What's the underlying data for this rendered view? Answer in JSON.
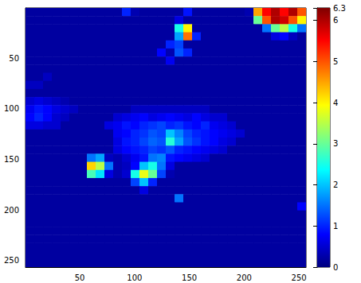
{
  "chart_data": {
    "type": "heatmap",
    "x": [
      4.5,
      12.5,
      20.5,
      28.5,
      36.5,
      44.5,
      52.5,
      60.5,
      68.5,
      76.5,
      84.5,
      92.5,
      100.5,
      108.5,
      116.5,
      124.5,
      132.5,
      140.5,
      148.5,
      156.5,
      164.5,
      172.5,
      180.5,
      188.5,
      196.5,
      204.5,
      212.5,
      220.5,
      228.5,
      236.5,
      244.5,
      252.5
    ],
    "y": [
      4.5,
      12.5,
      20.5,
      28.5,
      36.5,
      44.5,
      52.5,
      60.5,
      68.5,
      76.5,
      84.5,
      92.5,
      100.5,
      108.5,
      116.5,
      124.5,
      132.5,
      140.5,
      148.5,
      156.5,
      164.5,
      172.5,
      180.5,
      188.5,
      196.5,
      204.5,
      212.5,
      220.5,
      228.5,
      236.5,
      244.5,
      252.5
    ],
    "cells": [
      [
        0.2,
        0.2,
        0.2,
        0.2,
        0.2,
        0.2,
        0.2,
        0.2,
        0.2,
        0.2,
        0.2,
        1.0,
        0.3,
        0.2,
        0.2,
        0.2,
        0.2,
        0.2,
        0.9,
        0.2,
        0.2,
        0.2,
        0.2,
        0.2,
        0.2,
        0.3,
        4.5,
        5.5,
        6.0,
        5.5,
        6.0,
        5.0
      ],
      [
        0.2,
        0.2,
        0.2,
        0.2,
        0.2,
        0.2,
        0.2,
        0.2,
        0.2,
        0.2,
        0.2,
        0.2,
        0.2,
        0.2,
        0.2,
        0.2,
        0.2,
        0.6,
        0.2,
        0.2,
        0.2,
        0.2,
        0.2,
        0.2,
        0.2,
        0.2,
        3.0,
        5.0,
        6.0,
        5.8,
        5.0,
        4.0
      ],
      [
        0.2,
        0.2,
        0.2,
        0.2,
        0.2,
        0.2,
        0.2,
        0.2,
        0.2,
        0.2,
        0.2,
        0.2,
        0.2,
        0.2,
        0.2,
        0.2,
        0.2,
        2.5,
        4.0,
        0.2,
        0.2,
        0.2,
        0.2,
        0.2,
        0.2,
        0.2,
        0.2,
        1.5,
        3.0,
        3.5,
        2.5,
        1.5
      ],
      [
        0.2,
        0.2,
        0.2,
        0.2,
        0.2,
        0.2,
        0.2,
        0.2,
        0.2,
        0.2,
        0.2,
        0.2,
        0.2,
        0.2,
        0.2,
        0.2,
        0.2,
        1.8,
        4.8,
        1.0,
        0.2,
        0.2,
        0.2,
        0.2,
        0.2,
        0.2,
        0.2,
        0.2,
        0.6,
        0.8,
        0.4,
        0.2
      ],
      [
        0.2,
        0.2,
        0.2,
        0.2,
        0.2,
        0.2,
        0.2,
        0.2,
        0.2,
        0.2,
        0.2,
        0.2,
        0.2,
        0.2,
        0.2,
        0.2,
        1.0,
        1.2,
        0.2,
        0.2,
        0.2,
        0.2,
        0.2,
        0.2,
        0.2,
        0.2,
        0.2,
        0.2,
        0.2,
        0.2,
        0.2,
        0.2
      ],
      [
        0.2,
        0.2,
        0.2,
        0.2,
        0.2,
        0.2,
        0.2,
        0.2,
        0.2,
        0.2,
        0.2,
        0.2,
        0.2,
        0.2,
        0.2,
        0.8,
        0.3,
        1.3,
        1.0,
        0.2,
        0.2,
        0.2,
        0.2,
        0.2,
        0.2,
        0.2,
        0.2,
        0.2,
        0.2,
        0.2,
        0.2,
        0.2
      ],
      [
        0.2,
        0.2,
        0.2,
        0.2,
        0.2,
        0.2,
        0.2,
        0.2,
        0.2,
        0.2,
        0.2,
        0.2,
        0.2,
        0.2,
        0.2,
        0.2,
        0.7,
        0.2,
        0.2,
        0.2,
        0.2,
        0.2,
        0.2,
        0.2,
        0.2,
        0.2,
        0.2,
        0.2,
        0.2,
        0.2,
        0.2,
        0.2
      ],
      [
        0.2,
        0.2,
        0.2,
        0.2,
        0.2,
        0.2,
        0.2,
        0.2,
        0.2,
        0.2,
        0.2,
        0.2,
        0.2,
        0.2,
        0.2,
        0.2,
        0.2,
        0.2,
        0.2,
        0.2,
        0.2,
        0.2,
        0.2,
        0.2,
        0.2,
        0.2,
        0.2,
        0.2,
        0.2,
        0.2,
        0.2,
        0.2
      ],
      [
        0.2,
        0.2,
        0.4,
        0.2,
        0.2,
        0.2,
        0.2,
        0.2,
        0.2,
        0.2,
        0.2,
        0.2,
        0.2,
        0.2,
        0.2,
        0.2,
        0.2,
        0.2,
        0.2,
        0.2,
        0.2,
        0.2,
        0.2,
        0.2,
        0.2,
        0.2,
        0.2,
        0.2,
        0.2,
        0.2,
        0.2,
        0.2
      ],
      [
        0.4,
        0.4,
        0.2,
        0.2,
        0.2,
        0.2,
        0.2,
        0.2,
        0.2,
        0.2,
        0.2,
        0.2,
        0.2,
        0.2,
        0.2,
        0.2,
        0.2,
        0.2,
        0.2,
        0.2,
        0.2,
        0.2,
        0.2,
        0.2,
        0.2,
        0.2,
        0.2,
        0.2,
        0.2,
        0.2,
        0.2,
        0.2
      ],
      [
        0.2,
        0.2,
        0.2,
        0.2,
        0.2,
        0.2,
        0.2,
        0.2,
        0.2,
        0.2,
        0.2,
        0.2,
        0.2,
        0.2,
        0.2,
        0.2,
        0.2,
        0.2,
        0.2,
        0.2,
        0.2,
        0.2,
        0.2,
        0.2,
        0.2,
        0.2,
        0.2,
        0.2,
        0.2,
        0.2,
        0.2,
        0.2
      ],
      [
        0.5,
        0.6,
        0.5,
        0.4,
        0.3,
        0.2,
        0.2,
        0.2,
        0.2,
        0.2,
        0.2,
        0.2,
        0.2,
        0.2,
        0.2,
        0.2,
        0.2,
        0.2,
        0.2,
        0.2,
        0.2,
        0.2,
        0.2,
        0.2,
        0.2,
        0.2,
        0.2,
        0.2,
        0.2,
        0.2,
        0.2,
        0.2
      ],
      [
        0.7,
        0.9,
        0.8,
        0.6,
        0.5,
        0.4,
        0.2,
        0.2,
        0.2,
        0.2,
        0.2,
        0.2,
        0.4,
        0.4,
        0.4,
        0.4,
        0.4,
        0.4,
        0.4,
        0.4,
        0.4,
        0.2,
        0.2,
        0.2,
        0.2,
        0.2,
        0.2,
        0.2,
        0.2,
        0.2,
        0.2,
        0.2
      ],
      [
        0.8,
        1.0,
        0.8,
        0.5,
        0.4,
        0.2,
        0.2,
        0.2,
        0.2,
        0.2,
        0.5,
        0.6,
        0.7,
        0.8,
        0.6,
        0.7,
        0.8,
        0.7,
        0.6,
        0.8,
        0.6,
        0.5,
        0.5,
        0.2,
        0.2,
        0.2,
        0.2,
        0.2,
        0.2,
        0.2,
        0.2,
        0.2
      ],
      [
        0.6,
        0.6,
        0.5,
        0.5,
        0.2,
        0.2,
        0.2,
        0.2,
        0.2,
        0.6,
        0.7,
        0.9,
        0.8,
        1.0,
        1.1,
        1.2,
        1.0,
        1.1,
        0.9,
        0.8,
        1.0,
        0.7,
        0.6,
        0.5,
        0.2,
        0.2,
        0.2,
        0.2,
        0.2,
        0.2,
        0.2,
        0.2
      ],
      [
        0.2,
        0.2,
        0.2,
        0.2,
        0.2,
        0.2,
        0.2,
        0.2,
        0.2,
        0.2,
        0.7,
        0.8,
        1.0,
        1.1,
        1.3,
        1.2,
        2.0,
        1.6,
        1.2,
        1.0,
        0.9,
        0.8,
        0.7,
        0.6,
        0.5,
        0.2,
        0.2,
        0.2,
        0.2,
        0.2,
        0.2,
        0.2
      ],
      [
        0.2,
        0.2,
        0.2,
        0.2,
        0.2,
        0.2,
        0.2,
        0.2,
        0.2,
        0.2,
        0.6,
        0.9,
        1.0,
        1.2,
        1.4,
        1.3,
        2.6,
        1.8,
        1.3,
        1.1,
        0.9,
        0.8,
        0.6,
        0.5,
        0.2,
        0.2,
        0.2,
        0.2,
        0.2,
        0.2,
        0.2,
        0.2
      ],
      [
        0.2,
        0.2,
        0.2,
        0.2,
        0.2,
        0.2,
        0.2,
        0.2,
        0.2,
        0.2,
        0.6,
        0.8,
        0.9,
        1.0,
        1.2,
        1.1,
        1.3,
        1.0,
        0.9,
        0.8,
        0.7,
        0.6,
        0.5,
        0.2,
        0.2,
        0.2,
        0.2,
        0.2,
        0.2,
        0.2,
        0.2,
        0.2
      ],
      [
        0.2,
        0.2,
        0.2,
        0.2,
        0.2,
        0.2,
        0.2,
        1.5,
        1.8,
        0.4,
        0.3,
        0.5,
        0.7,
        0.9,
        1.5,
        1.6,
        0.9,
        0.8,
        0.7,
        0.6,
        0.5,
        0.2,
        0.2,
        0.2,
        0.2,
        0.2,
        0.2,
        0.2,
        0.2,
        0.2,
        0.2,
        0.2
      ],
      [
        0.2,
        0.2,
        0.2,
        0.2,
        0.2,
        0.2,
        0.2,
        4.2,
        3.5,
        1.5,
        0.3,
        0.4,
        0.8,
        2.0,
        2.5,
        1.5,
        0.6,
        0.2,
        0.2,
        0.2,
        0.2,
        0.2,
        0.2,
        0.2,
        0.2,
        0.2,
        0.2,
        0.2,
        0.2,
        0.2,
        0.2,
        0.2
      ],
      [
        0.2,
        0.2,
        0.2,
        0.2,
        0.2,
        0.2,
        0.2,
        2.8,
        2.2,
        0.6,
        0.3,
        0.5,
        2.5,
        3.8,
        3.0,
        1.2,
        0.3,
        0.2,
        0.2,
        0.2,
        0.2,
        0.2,
        0.2,
        0.2,
        0.2,
        0.2,
        0.2,
        0.2,
        0.2,
        0.2,
        0.2,
        0.2
      ],
      [
        0.2,
        0.2,
        0.2,
        0.2,
        0.2,
        0.2,
        0.2,
        0.2,
        0.2,
        0.2,
        0.2,
        0.2,
        1.2,
        2.0,
        1.0,
        0.2,
        0.2,
        0.2,
        0.2,
        0.2,
        0.2,
        0.2,
        0.2,
        0.2,
        0.2,
        0.2,
        0.2,
        0.2,
        0.2,
        0.2,
        0.2,
        0.2
      ],
      [
        0.2,
        0.2,
        0.2,
        0.2,
        0.2,
        0.2,
        0.2,
        0.2,
        0.2,
        0.2,
        0.2,
        0.2,
        0.2,
        0.6,
        0.2,
        0.2,
        0.2,
        0.2,
        0.2,
        0.2,
        0.2,
        0.2,
        0.2,
        0.2,
        0.2,
        0.2,
        0.2,
        0.2,
        0.2,
        0.2,
        0.2,
        0.2
      ],
      [
        0.2,
        0.2,
        0.2,
        0.2,
        0.2,
        0.2,
        0.2,
        0.2,
        0.2,
        0.2,
        0.2,
        0.2,
        0.2,
        0.2,
        0.2,
        0.2,
        0.2,
        1.5,
        0.2,
        0.2,
        0.2,
        0.2,
        0.2,
        0.2,
        0.2,
        0.2,
        0.2,
        0.2,
        0.2,
        0.2,
        0.2,
        0.2
      ],
      [
        0.2,
        0.2,
        0.2,
        0.2,
        0.2,
        0.2,
        0.2,
        0.2,
        0.2,
        0.2,
        0.2,
        0.2,
        0.2,
        0.2,
        0.2,
        0.2,
        0.2,
        0.2,
        0.2,
        0.2,
        0.2,
        0.2,
        0.2,
        0.2,
        0.2,
        0.2,
        0.2,
        0.2,
        0.2,
        0.2,
        0.2,
        0.8
      ],
      [
        0.2,
        0.2,
        0.2,
        0.2,
        0.2,
        0.2,
        0.2,
        0.2,
        0.2,
        0.2,
        0.2,
        0.2,
        0.2,
        0.2,
        0.2,
        0.2,
        0.2,
        0.2,
        0.2,
        0.2,
        0.2,
        0.2,
        0.2,
        0.2,
        0.2,
        0.2,
        0.2,
        0.2,
        0.2,
        0.2,
        0.2,
        0.2
      ],
      [
        0.2,
        0.2,
        0.2,
        0.2,
        0.2,
        0.2,
        0.2,
        0.2,
        0.2,
        0.2,
        0.2,
        0.2,
        0.2,
        0.2,
        0.2,
        0.2,
        0.2,
        0.2,
        0.2,
        0.2,
        0.2,
        0.2,
        0.2,
        0.2,
        0.2,
        0.2,
        0.2,
        0.2,
        0.2,
        0.2,
        0.2,
        0.2
      ],
      [
        0.2,
        0.2,
        0.2,
        0.2,
        0.2,
        0.2,
        0.2,
        0.2,
        0.2,
        0.2,
        0.2,
        0.2,
        0.2,
        0.2,
        0.2,
        0.2,
        0.2,
        0.2,
        0.2,
        0.2,
        0.2,
        0.2,
        0.2,
        0.2,
        0.2,
        0.2,
        0.2,
        0.2,
        0.2,
        0.2,
        0.2,
        0.2
      ],
      [
        0.2,
        0.2,
        0.2,
        0.2,
        0.2,
        0.2,
        0.2,
        0.2,
        0.2,
        0.2,
        0.2,
        0.2,
        0.2,
        0.2,
        0.2,
        0.2,
        0.2,
        0.2,
        0.2,
        0.2,
        0.2,
        0.2,
        0.2,
        0.2,
        0.2,
        0.2,
        0.2,
        0.2,
        0.2,
        0.2,
        0.2,
        0.2
      ],
      [
        0.2,
        0.2,
        0.2,
        0.2,
        0.2,
        0.2,
        0.2,
        0.2,
        0.2,
        0.2,
        0.2,
        0.2,
        0.2,
        0.2,
        0.2,
        0.2,
        0.2,
        0.2,
        0.2,
        0.2,
        0.2,
        0.2,
        0.2,
        0.2,
        0.2,
        0.2,
        0.2,
        0.2,
        0.2,
        0.2,
        0.2,
        0.2
      ],
      [
        0.2,
        0.2,
        0.2,
        0.2,
        0.2,
        0.2,
        0.2,
        0.2,
        0.2,
        0.2,
        0.2,
        0.2,
        0.2,
        0.2,
        0.2,
        0.2,
        0.2,
        0.2,
        0.2,
        0.2,
        0.2,
        0.2,
        0.2,
        0.2,
        0.2,
        0.2,
        0.2,
        0.2,
        0.2,
        0.2,
        0.2,
        0.2
      ],
      [
        0.2,
        0.2,
        0.2,
        0.2,
        0.2,
        0.2,
        0.2,
        0.2,
        0.2,
        0.2,
        0.2,
        0.2,
        0.2,
        0.2,
        0.2,
        0.2,
        0.2,
        0.2,
        0.2,
        0.2,
        0.2,
        0.2,
        0.2,
        0.2,
        0.2,
        0.2,
        0.2,
        0.2,
        0.2,
        0.2,
        0.2,
        0.2
      ]
    ],
    "xlim": [
      0.5,
      256.5
    ],
    "ylim": [
      0.5,
      256.5
    ],
    "xticks": [
      50,
      100,
      150,
      200,
      250
    ],
    "yticks": [
      50,
      100,
      150,
      200,
      250
    ],
    "colorbar": {
      "range": [
        0,
        6.3
      ],
      "ticks": [
        0,
        1,
        2,
        3,
        4,
        5,
        6
      ]
    }
  }
}
